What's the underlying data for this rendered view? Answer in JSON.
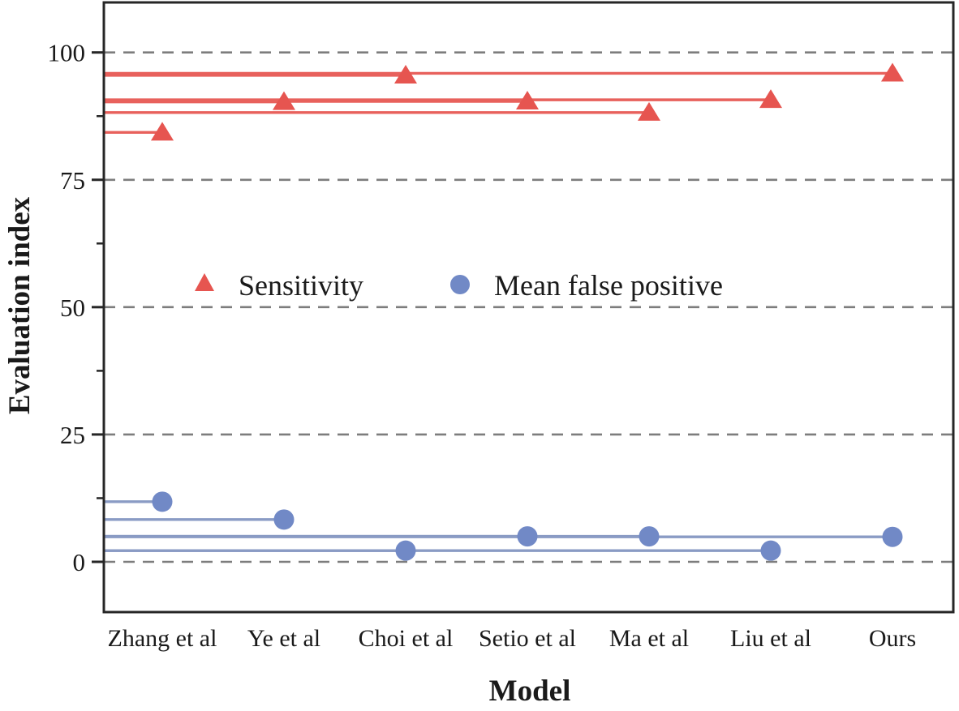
{
  "figure": {
    "y_axis_title": "Evaluation index",
    "x_axis_title": "Model",
    "legend": [
      {
        "label": "Sensitivity",
        "marker": "triangle-icon",
        "color": "#e65550"
      },
      {
        "label": "Mean false positive",
        "marker": "circle-icon",
        "color": "#7189c6"
      }
    ]
  },
  "chart_data": {
    "type": "scatter",
    "subtype": "lollipop: horizontal stem from y-axis to each category marker",
    "title": "",
    "xlabel": "Model",
    "ylabel": "Evaluation index",
    "categories": [
      "Zhang et al",
      "Ye et al",
      "Choi et al",
      "Setio et al",
      "Ma et al",
      "Liu et al",
      "Ours"
    ],
    "series": [
      {
        "name": "Sensitivity",
        "marker": "triangle",
        "color": "#e65550",
        "stem_color": "#e8615c",
        "values": [
          84.3,
          90.3,
          95.5,
          90.4,
          88.2,
          90.7,
          95.9
        ]
      },
      {
        "name": "Mean false positive",
        "marker": "circle",
        "color": "#7189c6",
        "stem_color": "#8a9bc4",
        "values": [
          11.8,
          8.3,
          2.2,
          5.0,
          5.0,
          2.2,
          4.9
        ]
      }
    ],
    "y_ticks": [
      0,
      25,
      50,
      75,
      100
    ],
    "y_minor_ticks": [
      12.5,
      37.5,
      62.5,
      87.5
    ],
    "ylim": [
      -9.9,
      109.8
    ],
    "grid": "horizontal dashed gray lines at major y ticks",
    "grid_color": "#7d7d7d",
    "axis_color": "#262626",
    "legend_position": "inside plot, centered around y=50"
  }
}
